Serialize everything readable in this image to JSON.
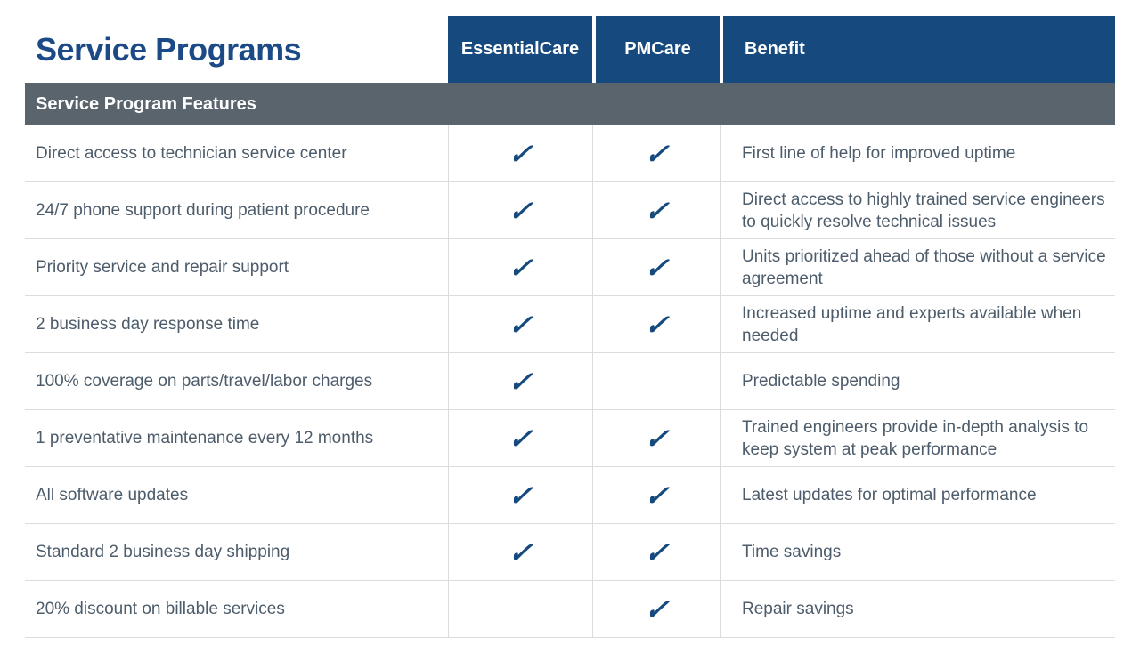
{
  "page": {
    "title": "Service Programs",
    "section_header": "Service Program Features"
  },
  "columns": {
    "essentialcare": "EssentialCare",
    "pmcare": "PMCare",
    "benefit": "Benefit"
  },
  "colors": {
    "header_blue": "#16497E",
    "title_blue": "#1B4A86",
    "band_gray": "#5A646C",
    "body_text": "#4D5C6B",
    "check_blue": "#16497E",
    "divider": "#DCDCDC"
  },
  "icons": {
    "check_glyph": "✓"
  },
  "rows": [
    {
      "feature": "Direct access to technician service center",
      "essentialcare": "✓",
      "pmcare": "✓",
      "benefit": "First line of help for improved uptime"
    },
    {
      "feature": "24/7 phone support during patient procedure",
      "essentialcare": "✓",
      "pmcare": "✓",
      "benefit": "Direct access to highly trained service engineers to quickly resolve technical issues"
    },
    {
      "feature": "Priority service and repair support",
      "essentialcare": "✓",
      "pmcare": "✓",
      "benefit": "Units prioritized ahead of those without a service agreement"
    },
    {
      "feature": "2 business day response time",
      "essentialcare": "✓",
      "pmcare": "✓",
      "benefit": "Increased uptime and experts available when needed"
    },
    {
      "feature": "100% coverage on parts/travel/labor charges",
      "essentialcare": "✓",
      "pmcare": "",
      "benefit": "Predictable spending"
    },
    {
      "feature": "1 preventative maintenance every 12 months",
      "essentialcare": "✓",
      "pmcare": "✓",
      "benefit": "Trained engineers provide in-depth analysis to keep system at peak performance"
    },
    {
      "feature": "All software updates",
      "essentialcare": "✓",
      "pmcare": "✓",
      "benefit": "Latest updates for optimal performance"
    },
    {
      "feature": "Standard 2 business day shipping",
      "essentialcare": "✓",
      "pmcare": "✓",
      "benefit": "Time savings"
    },
    {
      "feature": "20% discount on billable services",
      "essentialcare": "",
      "pmcare": "✓",
      "benefit": "Repair savings"
    }
  ]
}
